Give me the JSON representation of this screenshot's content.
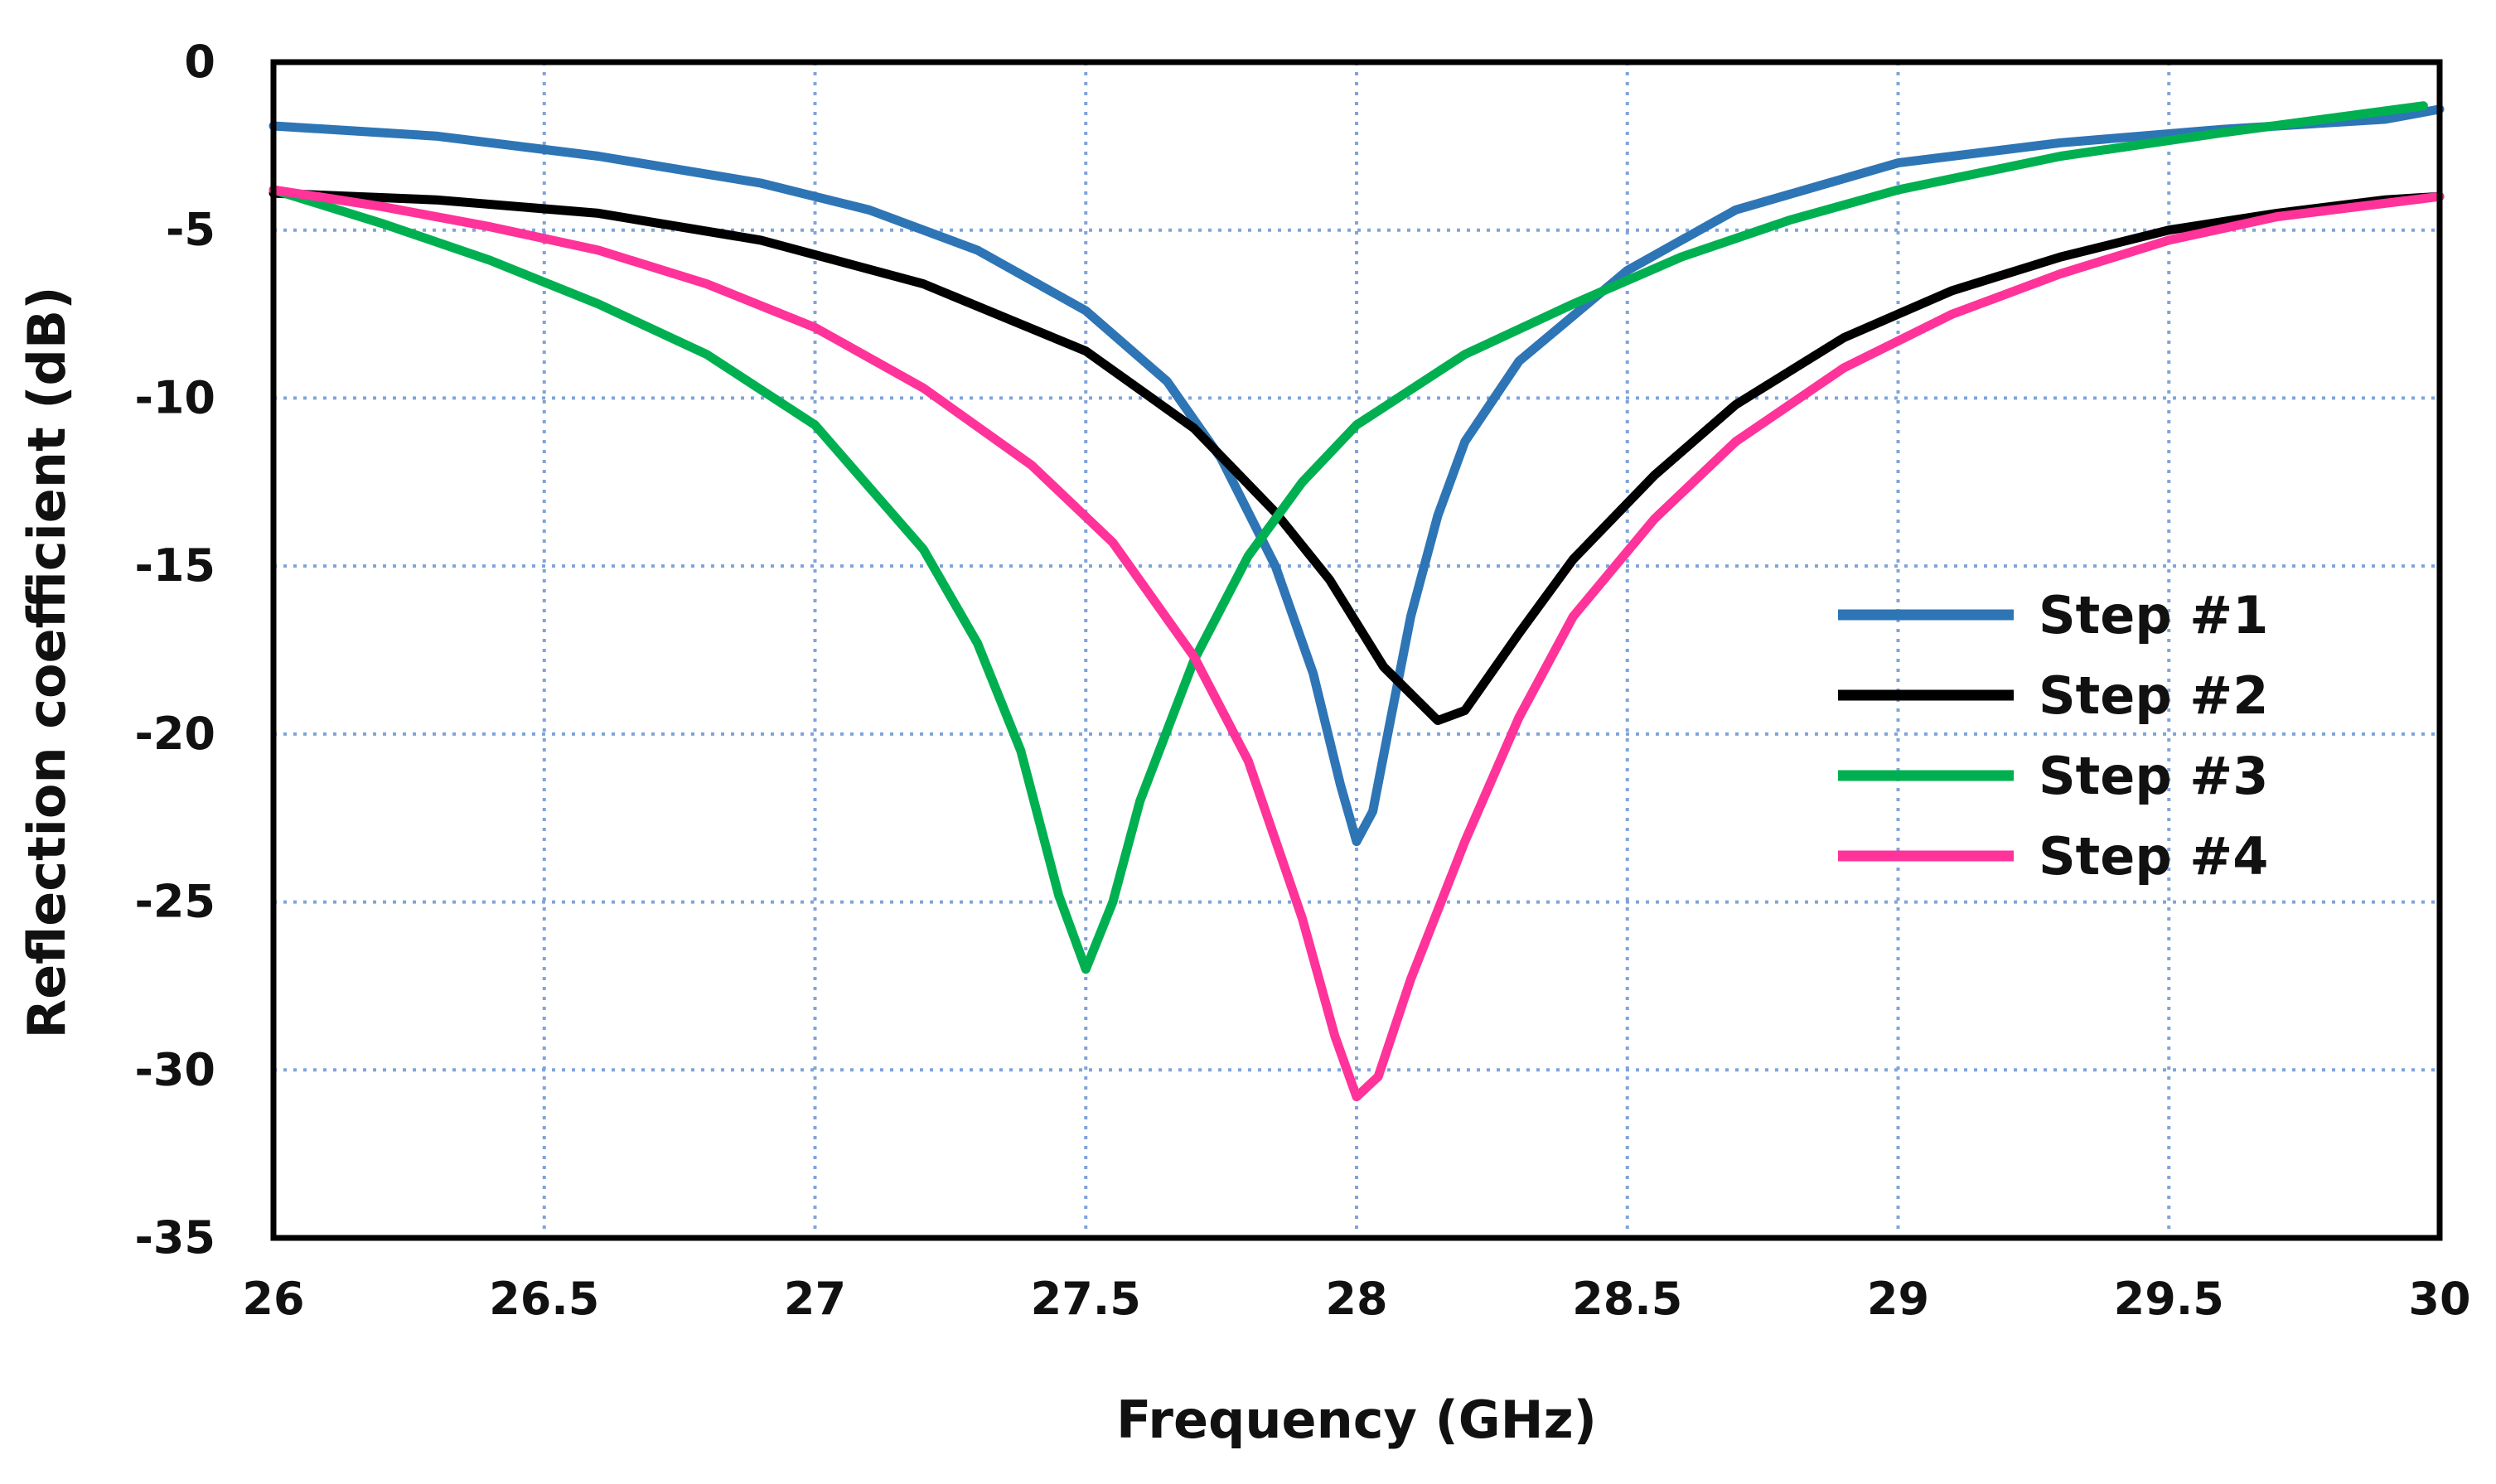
{
  "chart_data": {
    "type": "line",
    "title": "",
    "xlabel": "Frequency (GHz)",
    "ylabel": "Reflection coefficient (dB)",
    "xlim": [
      26,
      30
    ],
    "ylim": [
      -35,
      0
    ],
    "xticks": [
      26,
      26.5,
      27,
      27.5,
      28,
      28.5,
      29,
      29.5,
      30
    ],
    "xtick_labels": [
      "26",
      "26.5",
      "27",
      "27.5",
      "28",
      "28.5",
      "29",
      "29.5",
      "30"
    ],
    "yticks": [
      0,
      -5,
      -10,
      -15,
      -20,
      -25,
      -30,
      -35
    ],
    "ytick_labels": [
      "0",
      "-5",
      "-10",
      "-15",
      "-20",
      "-25",
      "-30",
      "-35"
    ],
    "grid": true,
    "legend_position": "center-right",
    "series": [
      {
        "name": "Step #1",
        "color": "#2e75b6",
        "x": [
          26,
          26.3,
          26.6,
          26.9,
          27.1,
          27.3,
          27.5,
          27.65,
          27.75,
          27.85,
          27.92,
          27.97,
          28.0,
          28.03,
          28.06,
          28.1,
          28.15,
          28.2,
          28.3,
          28.5,
          28.7,
          29.0,
          29.3,
          29.6,
          29.9,
          30
        ],
        "y": [
          -1.9,
          -2.2,
          -2.8,
          -3.6,
          -4.4,
          -5.6,
          -7.4,
          -9.5,
          -11.8,
          -15.0,
          -18.2,
          -21.5,
          -23.2,
          -22.3,
          -19.8,
          -16.5,
          -13.5,
          -11.3,
          -8.9,
          -6.2,
          -4.4,
          -3.0,
          -2.4,
          -2.0,
          -1.7,
          -1.4
        ]
      },
      {
        "name": "Step #2",
        "color": "#000000",
        "x": [
          26,
          26.3,
          26.6,
          26.9,
          27.2,
          27.5,
          27.7,
          27.85,
          27.95,
          28.05,
          28.15,
          28.2,
          28.3,
          28.4,
          28.55,
          28.7,
          28.9,
          29.1,
          29.3,
          29.5,
          29.7,
          29.9,
          30
        ],
        "y": [
          -3.9,
          -4.1,
          -4.5,
          -5.3,
          -6.6,
          -8.6,
          -10.9,
          -13.4,
          -15.4,
          -18.0,
          -19.6,
          -19.3,
          -17.0,
          -14.8,
          -12.3,
          -10.2,
          -8.2,
          -6.8,
          -5.8,
          -5.0,
          -4.5,
          -4.1,
          -4.0
        ]
      },
      {
        "name": "Step #3",
        "color": "#00b050",
        "x": [
          26,
          26.2,
          26.4,
          26.6,
          26.8,
          27.0,
          27.2,
          27.3,
          27.38,
          27.45,
          27.5,
          27.55,
          27.6,
          27.7,
          27.8,
          27.9,
          28.0,
          28.2,
          28.4,
          28.6,
          28.8,
          29.0,
          29.3,
          29.6,
          29.97
        ],
        "y": [
          -3.8,
          -4.8,
          -5.9,
          -7.2,
          -8.7,
          -10.8,
          -14.5,
          -17.3,
          -20.5,
          -24.8,
          -27.0,
          -25.0,
          -22.0,
          -17.8,
          -14.7,
          -12.5,
          -10.8,
          -8.7,
          -7.2,
          -5.8,
          -4.7,
          -3.8,
          -2.8,
          -2.1,
          -1.3
        ]
      },
      {
        "name": "Step #4",
        "color": "#ff3399",
        "x": [
          26,
          26.2,
          26.4,
          26.6,
          26.8,
          27.0,
          27.2,
          27.4,
          27.55,
          27.7,
          27.8,
          27.9,
          27.96,
          28.0,
          28.04,
          28.1,
          28.2,
          28.3,
          28.4,
          28.55,
          28.7,
          28.9,
          29.1,
          29.3,
          29.5,
          29.7,
          30
        ],
        "y": [
          -3.8,
          -4.3,
          -4.9,
          -5.6,
          -6.6,
          -7.9,
          -9.7,
          -12.0,
          -14.3,
          -17.7,
          -20.8,
          -25.5,
          -29.0,
          -30.8,
          -30.2,
          -27.3,
          -23.2,
          -19.5,
          -16.5,
          -13.6,
          -11.3,
          -9.1,
          -7.5,
          -6.3,
          -5.3,
          -4.6,
          -4.0
        ]
      }
    ]
  }
}
